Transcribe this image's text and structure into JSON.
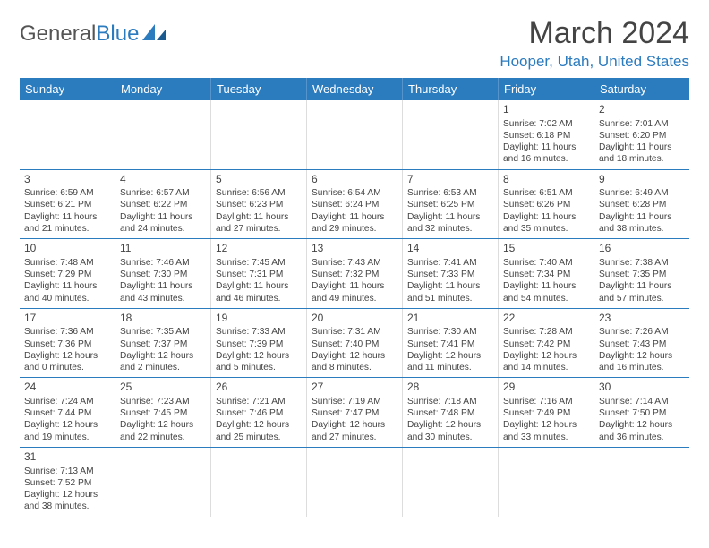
{
  "logo": {
    "text1": "General",
    "text2": "Blue",
    "color1": "#555555",
    "color2": "#2b7bbf"
  },
  "title": "March 2024",
  "location": "Hooper, Utah, United States",
  "header_bg": "#2b7bbf",
  "days": [
    "Sunday",
    "Monday",
    "Tuesday",
    "Wednesday",
    "Thursday",
    "Friday",
    "Saturday"
  ],
  "weeks": [
    [
      null,
      null,
      null,
      null,
      null,
      {
        "n": "1",
        "sr": "Sunrise: 7:02 AM",
        "ss": "Sunset: 6:18 PM",
        "dl": "Daylight: 11 hours and 16 minutes."
      },
      {
        "n": "2",
        "sr": "Sunrise: 7:01 AM",
        "ss": "Sunset: 6:20 PM",
        "dl": "Daylight: 11 hours and 18 minutes."
      }
    ],
    [
      {
        "n": "3",
        "sr": "Sunrise: 6:59 AM",
        "ss": "Sunset: 6:21 PM",
        "dl": "Daylight: 11 hours and 21 minutes."
      },
      {
        "n": "4",
        "sr": "Sunrise: 6:57 AM",
        "ss": "Sunset: 6:22 PM",
        "dl": "Daylight: 11 hours and 24 minutes."
      },
      {
        "n": "5",
        "sr": "Sunrise: 6:56 AM",
        "ss": "Sunset: 6:23 PM",
        "dl": "Daylight: 11 hours and 27 minutes."
      },
      {
        "n": "6",
        "sr": "Sunrise: 6:54 AM",
        "ss": "Sunset: 6:24 PM",
        "dl": "Daylight: 11 hours and 29 minutes."
      },
      {
        "n": "7",
        "sr": "Sunrise: 6:53 AM",
        "ss": "Sunset: 6:25 PM",
        "dl": "Daylight: 11 hours and 32 minutes."
      },
      {
        "n": "8",
        "sr": "Sunrise: 6:51 AM",
        "ss": "Sunset: 6:26 PM",
        "dl": "Daylight: 11 hours and 35 minutes."
      },
      {
        "n": "9",
        "sr": "Sunrise: 6:49 AM",
        "ss": "Sunset: 6:28 PM",
        "dl": "Daylight: 11 hours and 38 minutes."
      }
    ],
    [
      {
        "n": "10",
        "sr": "Sunrise: 7:48 AM",
        "ss": "Sunset: 7:29 PM",
        "dl": "Daylight: 11 hours and 40 minutes."
      },
      {
        "n": "11",
        "sr": "Sunrise: 7:46 AM",
        "ss": "Sunset: 7:30 PM",
        "dl": "Daylight: 11 hours and 43 minutes."
      },
      {
        "n": "12",
        "sr": "Sunrise: 7:45 AM",
        "ss": "Sunset: 7:31 PM",
        "dl": "Daylight: 11 hours and 46 minutes."
      },
      {
        "n": "13",
        "sr": "Sunrise: 7:43 AM",
        "ss": "Sunset: 7:32 PM",
        "dl": "Daylight: 11 hours and 49 minutes."
      },
      {
        "n": "14",
        "sr": "Sunrise: 7:41 AM",
        "ss": "Sunset: 7:33 PM",
        "dl": "Daylight: 11 hours and 51 minutes."
      },
      {
        "n": "15",
        "sr": "Sunrise: 7:40 AM",
        "ss": "Sunset: 7:34 PM",
        "dl": "Daylight: 11 hours and 54 minutes."
      },
      {
        "n": "16",
        "sr": "Sunrise: 7:38 AM",
        "ss": "Sunset: 7:35 PM",
        "dl": "Daylight: 11 hours and 57 minutes."
      }
    ],
    [
      {
        "n": "17",
        "sr": "Sunrise: 7:36 AM",
        "ss": "Sunset: 7:36 PM",
        "dl": "Daylight: 12 hours and 0 minutes."
      },
      {
        "n": "18",
        "sr": "Sunrise: 7:35 AM",
        "ss": "Sunset: 7:37 PM",
        "dl": "Daylight: 12 hours and 2 minutes."
      },
      {
        "n": "19",
        "sr": "Sunrise: 7:33 AM",
        "ss": "Sunset: 7:39 PM",
        "dl": "Daylight: 12 hours and 5 minutes."
      },
      {
        "n": "20",
        "sr": "Sunrise: 7:31 AM",
        "ss": "Sunset: 7:40 PM",
        "dl": "Daylight: 12 hours and 8 minutes."
      },
      {
        "n": "21",
        "sr": "Sunrise: 7:30 AM",
        "ss": "Sunset: 7:41 PM",
        "dl": "Daylight: 12 hours and 11 minutes."
      },
      {
        "n": "22",
        "sr": "Sunrise: 7:28 AM",
        "ss": "Sunset: 7:42 PM",
        "dl": "Daylight: 12 hours and 14 minutes."
      },
      {
        "n": "23",
        "sr": "Sunrise: 7:26 AM",
        "ss": "Sunset: 7:43 PM",
        "dl": "Daylight: 12 hours and 16 minutes."
      }
    ],
    [
      {
        "n": "24",
        "sr": "Sunrise: 7:24 AM",
        "ss": "Sunset: 7:44 PM",
        "dl": "Daylight: 12 hours and 19 minutes."
      },
      {
        "n": "25",
        "sr": "Sunrise: 7:23 AM",
        "ss": "Sunset: 7:45 PM",
        "dl": "Daylight: 12 hours and 22 minutes."
      },
      {
        "n": "26",
        "sr": "Sunrise: 7:21 AM",
        "ss": "Sunset: 7:46 PM",
        "dl": "Daylight: 12 hours and 25 minutes."
      },
      {
        "n": "27",
        "sr": "Sunrise: 7:19 AM",
        "ss": "Sunset: 7:47 PM",
        "dl": "Daylight: 12 hours and 27 minutes."
      },
      {
        "n": "28",
        "sr": "Sunrise: 7:18 AM",
        "ss": "Sunset: 7:48 PM",
        "dl": "Daylight: 12 hours and 30 minutes."
      },
      {
        "n": "29",
        "sr": "Sunrise: 7:16 AM",
        "ss": "Sunset: 7:49 PM",
        "dl": "Daylight: 12 hours and 33 minutes."
      },
      {
        "n": "30",
        "sr": "Sunrise: 7:14 AM",
        "ss": "Sunset: 7:50 PM",
        "dl": "Daylight: 12 hours and 36 minutes."
      }
    ],
    [
      {
        "n": "31",
        "sr": "Sunrise: 7:13 AM",
        "ss": "Sunset: 7:52 PM",
        "dl": "Daylight: 12 hours and 38 minutes."
      },
      null,
      null,
      null,
      null,
      null,
      null
    ]
  ]
}
